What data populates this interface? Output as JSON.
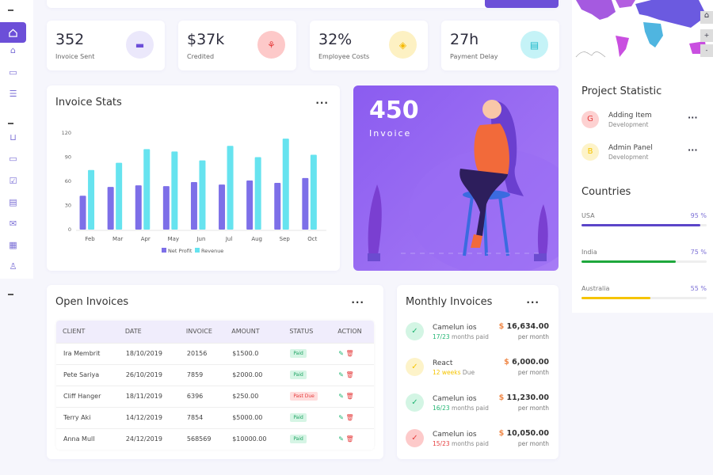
{
  "sidebar": {
    "items": [
      "home",
      "home-outline",
      "chat",
      "list",
      "cart",
      "messages",
      "chat-check",
      "layout",
      "mail-open",
      "calendar",
      "user"
    ]
  },
  "stats": [
    {
      "value": "352",
      "label": "Invoice Sent",
      "bg": "#ebe8fb",
      "color": "#6c4fd8",
      "icon": "inbox-icon"
    },
    {
      "value": "$37k",
      "label": "Credited",
      "bg": "#fdc9c9",
      "color": "#e53c3c",
      "icon": "coins-icon"
    },
    {
      "value": "32%",
      "label": "Employee Costs",
      "bg": "#fdf1c3",
      "color": "#f5b800",
      "icon": "tag-icon"
    },
    {
      "value": "27h",
      "label": "Payment Delay",
      "bg": "#c5f3f7",
      "color": "#1ab7c9",
      "icon": "window-icon"
    }
  ],
  "invoice_stats": {
    "title": "Invoice Stats",
    "more": "..."
  },
  "chart_data": {
    "type": "bar",
    "title": "Invoice Stats",
    "categories": [
      "Feb",
      "Mar",
      "Apr",
      "May",
      "Jun",
      "Jul",
      "Aug",
      "Sep",
      "Oct"
    ],
    "series": [
      {
        "name": "Net Profit",
        "color": "#7d6fe8",
        "values": [
          42,
          53,
          55,
          54,
          59,
          56,
          61,
          58,
          64
        ]
      },
      {
        "name": "Revenue",
        "color": "#66e3ef",
        "values": [
          74,
          83,
          100,
          97,
          86,
          104,
          90,
          113,
          93
        ]
      }
    ],
    "yticks": [
      0,
      30,
      60,
      90,
      120
    ],
    "ylim": [
      0,
      120
    ],
    "legend": "bottom"
  },
  "banner": {
    "value": "450",
    "label": "Invoice"
  },
  "open_invoices": {
    "title": "Open Invoices",
    "more": "...",
    "columns": [
      "CLIENT",
      "DATE",
      "INVOICE",
      "AMOUNT",
      "STATUS",
      "ACTION"
    ],
    "rows": [
      {
        "client": "Ira Membrit",
        "date": "18/10/2019",
        "invoice": "20156",
        "amount": "$1500.0",
        "status": "Paid"
      },
      {
        "client": "Pete Sariya",
        "date": "26/10/2019",
        "invoice": "7859",
        "amount": "$2000.00",
        "status": "Paid"
      },
      {
        "client": "Cliff Hanger",
        "date": "18/11/2019",
        "invoice": "6396",
        "amount": "$250.00",
        "status": "Past Due"
      },
      {
        "client": "Terry Aki",
        "date": "14/12/2019",
        "invoice": "7854",
        "amount": "$5000.00",
        "status": "Paid"
      },
      {
        "client": "Anna Mull",
        "date": "24/12/2019",
        "invoice": "568569",
        "amount": "$10000.00",
        "status": "Paid"
      }
    ]
  },
  "monthly": {
    "title": "Monthly Invoices",
    "more": "...",
    "items": [
      {
        "name": "Camelun ios",
        "hl": "17/23",
        "rest": " months paid",
        "amount": "16,634.00",
        "currency": "$",
        "per": "per month",
        "color": "#22b573",
        "bg": "#d3f5e4"
      },
      {
        "name": "React",
        "hl": "12 weeks",
        "rest": " Due",
        "amount": "6,000.00",
        "currency": "$",
        "per": "per month",
        "color": "#f5c400",
        "bg": "#fdf3c9"
      },
      {
        "name": "Camelun ios",
        "hl": "16/23",
        "rest": " months paid",
        "amount": "11,230.00",
        "currency": "$",
        "per": "per month",
        "color": "#22b573",
        "bg": "#d3f5e4"
      },
      {
        "name": "Camelun ios",
        "hl": "15/23",
        "rest": " months paid",
        "amount": "10,050.00",
        "currency": "$",
        "per": "per month",
        "color": "#e53c3c",
        "bg": "#fdcaca"
      }
    ]
  },
  "project": {
    "title": "Project Statistic",
    "items": [
      {
        "letter": "G",
        "name": "Adding Item",
        "sub": "Development",
        "bg": "#fdd1d1",
        "color": "#e53c3c"
      },
      {
        "letter": "B",
        "name": "Admin Panel",
        "sub": "Development",
        "bg": "#fdf3c9",
        "color": "#f5c400"
      }
    ]
  },
  "countries": {
    "title": "Countries",
    "items": [
      {
        "name": "USA",
        "pct": 95,
        "label": "95 %",
        "color": "#5b45c9"
      },
      {
        "name": "India",
        "pct": 75,
        "label": "75 %",
        "color": "#1ea83c"
      },
      {
        "name": "Australia",
        "pct": 55,
        "label": "55 %",
        "color": "#f5c400"
      }
    ]
  },
  "map": {
    "zoom_in": "+",
    "zoom_out": "-"
  }
}
